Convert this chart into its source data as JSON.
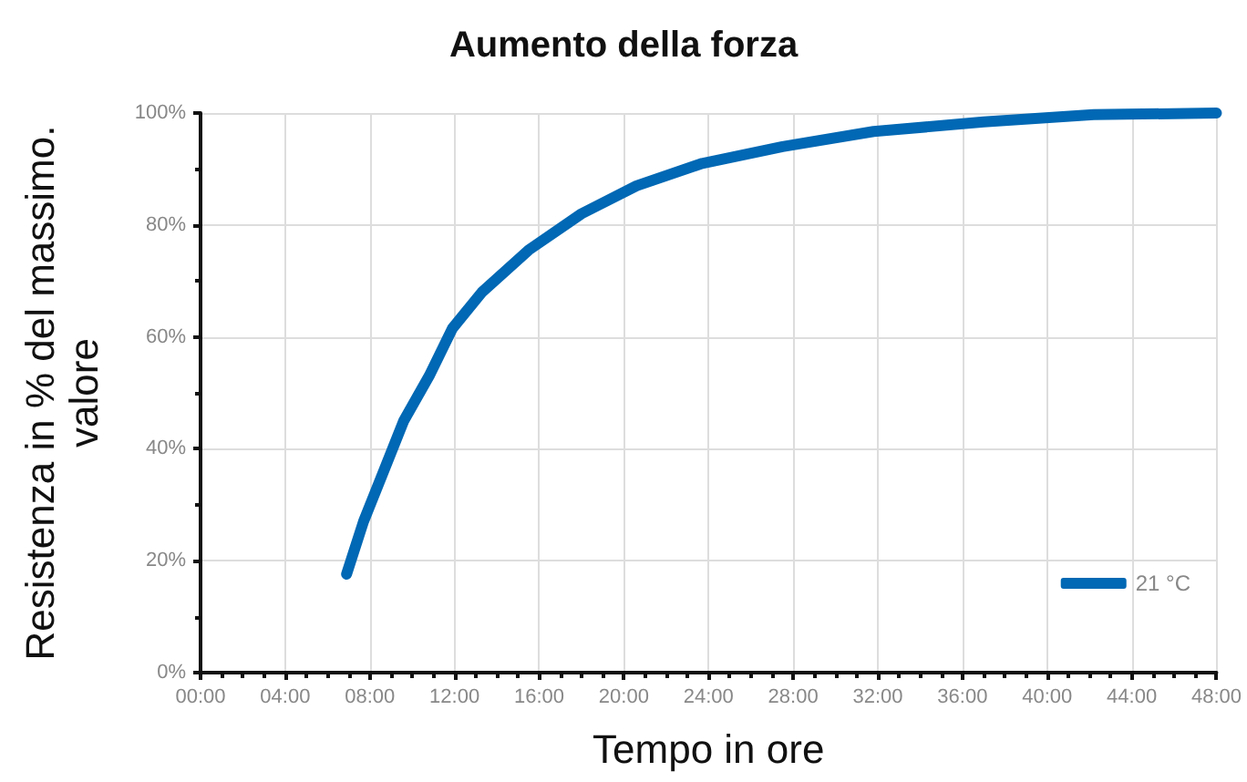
{
  "chart_data": {
    "type": "line",
    "title": "Aumento della forza",
    "xlabel": "Tempo in ore",
    "ylabel": "Resistenza in % del massimo.\nvalore",
    "xlim": [
      0,
      48
    ],
    "ylim": [
      0,
      100
    ],
    "xticks": [
      {
        "value": 0,
        "label": "00:00"
      },
      {
        "value": 4,
        "label": "04:00"
      },
      {
        "value": 8,
        "label": "08:00"
      },
      {
        "value": 12,
        "label": "12:00"
      },
      {
        "value": 16,
        "label": "16:00"
      },
      {
        "value": 20,
        "label": "20:00"
      },
      {
        "value": 24,
        "label": "24:00"
      },
      {
        "value": 28,
        "label": "28:00"
      },
      {
        "value": 32,
        "label": "32:00"
      },
      {
        "value": 36,
        "label": "36:00"
      },
      {
        "value": 40,
        "label": "40:00"
      },
      {
        "value": 44,
        "label": "44:00"
      },
      {
        "value": 48,
        "label": "48:00"
      }
    ],
    "yticks": [
      {
        "value": 0,
        "label": "0%"
      },
      {
        "value": 20,
        "label": "20%"
      },
      {
        "value": 40,
        "label": "40%"
      },
      {
        "value": 60,
        "label": "60%"
      },
      {
        "value": 80,
        "label": "80%"
      },
      {
        "value": 100,
        "label": "100%"
      }
    ],
    "grid": true,
    "legend": "bottom right",
    "marker": "none",
    "line_style": "solid",
    "series": [
      {
        "name": "21 °C",
        "color": "#0068b4",
        "x": [
          6.9,
          7.7,
          8.6,
          9.6,
          10.8,
          11.9,
          13.3,
          15.5,
          18,
          20.6,
          23.7,
          27.5,
          31.8,
          37,
          42.2,
          48
        ],
        "values": [
          17.6,
          27,
          35.5,
          45,
          53,
          61.5,
          68,
          75.5,
          82,
          87,
          91,
          94,
          96.7,
          98.4,
          99.7,
          100
        ]
      }
    ]
  }
}
